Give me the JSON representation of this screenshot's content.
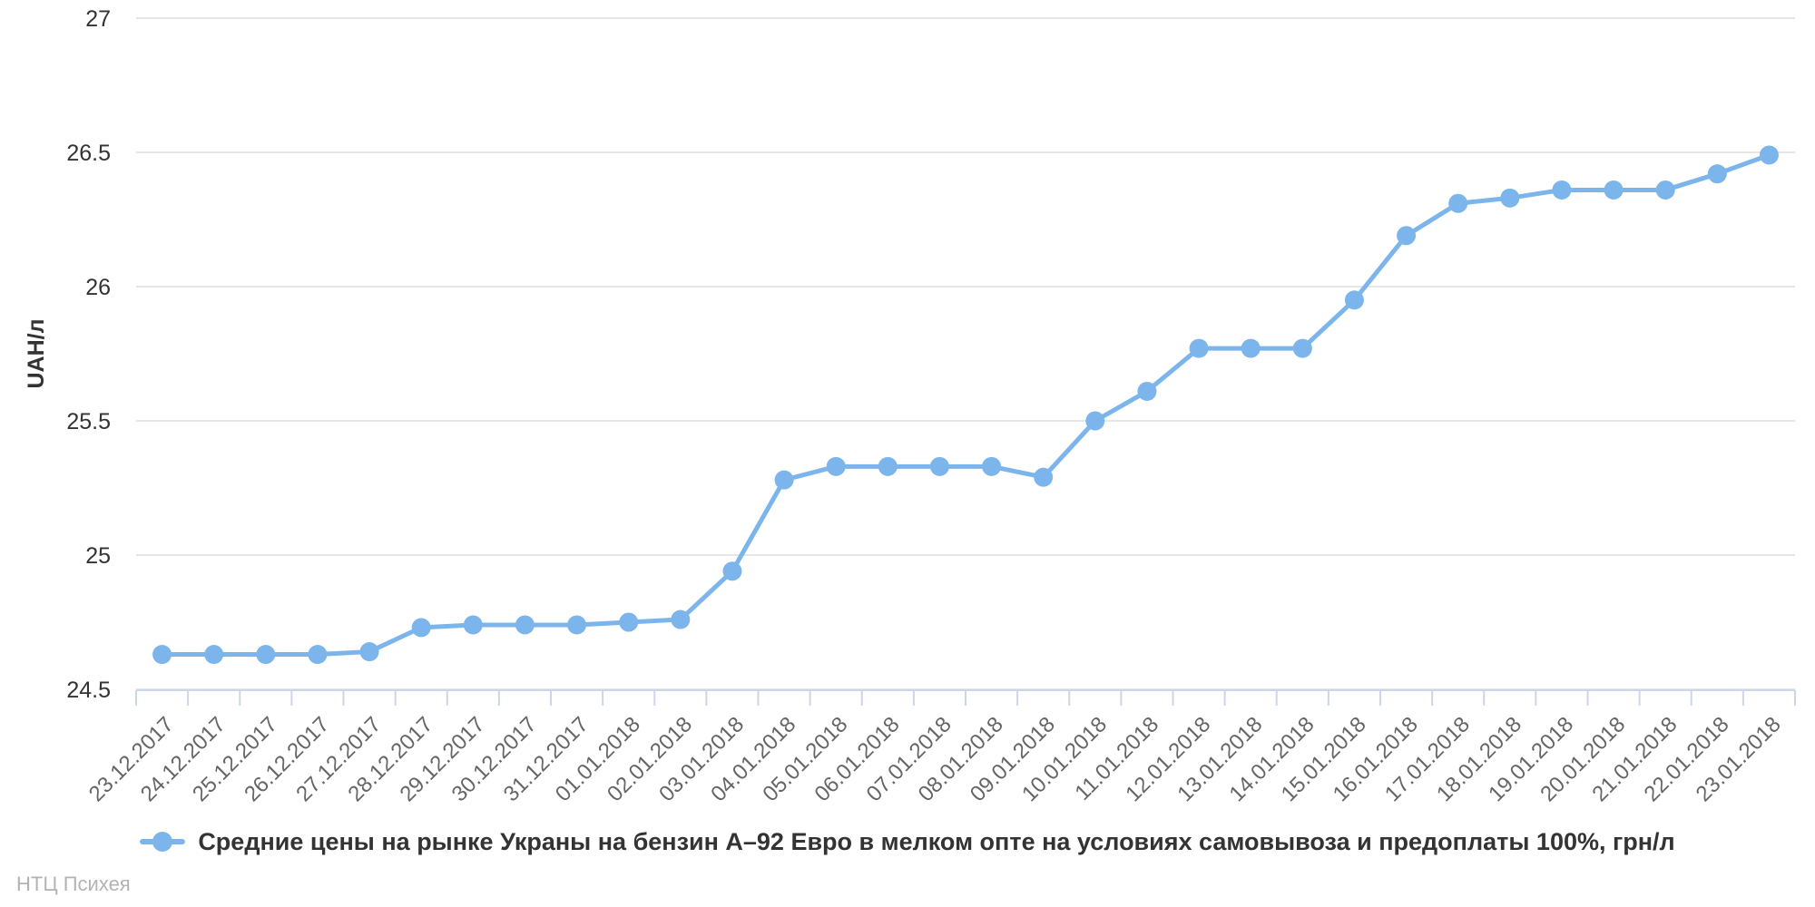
{
  "chart_data": {
    "type": "line",
    "title": "",
    "xlabel": "",
    "ylabel": "UAH/л",
    "ylim": [
      24.5,
      27
    ],
    "yticks": [
      24.5,
      25,
      25.5,
      26,
      26.5,
      27
    ],
    "grid": "horizontal-only",
    "legend_position": "bottom-center",
    "categories": [
      "23.12.2017",
      "24.12.2017",
      "25.12.2017",
      "26.12.2017",
      "27.12.2017",
      "28.12.2017",
      "29.12.2017",
      "30.12.2017",
      "31.12.2017",
      "01.01.2018",
      "02.01.2018",
      "03.01.2018",
      "04.01.2018",
      "05.01.2018",
      "06.01.2018",
      "07.01.2018",
      "08.01.2018",
      "09.01.2018",
      "10.01.2018",
      "11.01.2018",
      "12.01.2018",
      "13.01.2018",
      "14.01.2018",
      "15.01.2018",
      "16.01.2018",
      "17.01.2018",
      "18.01.2018",
      "19.01.2018",
      "20.01.2018",
      "21.01.2018",
      "22.01.2018",
      "23.01.2018"
    ],
    "series": [
      {
        "name": "Средние цены на рынке Украны на бензин А–92 Евро в мелком опте на условиях самовывоза и предоплаты 100%, грн/л",
        "values": [
          24.63,
          24.63,
          24.63,
          24.63,
          24.64,
          24.73,
          24.74,
          24.74,
          24.74,
          24.75,
          24.76,
          24.94,
          25.28,
          25.33,
          25.33,
          25.33,
          25.33,
          25.29,
          25.5,
          25.61,
          25.77,
          25.77,
          25.77,
          25.95,
          26.19,
          26.31,
          26.33,
          26.36,
          26.36,
          26.36,
          26.42,
          26.49
        ]
      }
    ],
    "colors": {
      "line": "#7cb5ec",
      "marker": "#7cb5ec",
      "grid": "#e6e6e6",
      "axis_line": "#ccd6eb",
      "y_tick_label": "#333333",
      "x_tick_label": "#666666",
      "y_axis_title": "#333333",
      "legend_text": "#333333",
      "watermark": "#b3b3b3"
    }
  },
  "watermark": "НТЦ Психея"
}
